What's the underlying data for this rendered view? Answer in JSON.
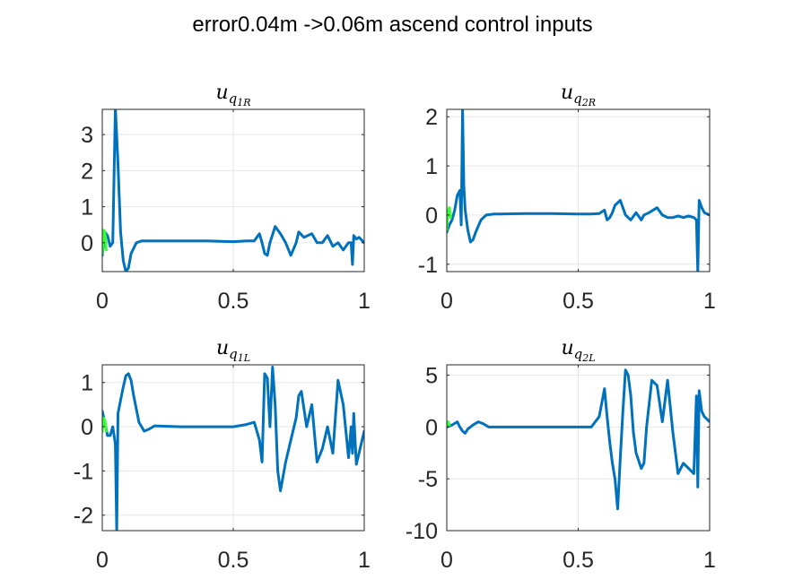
{
  "figure": {
    "title": "error0.04m ->0.06m ascend control inputs"
  },
  "colors": {
    "main": "#0072BD",
    "secondary": "#33FF33",
    "grid": "#E6E6E6",
    "axis": "#262626"
  },
  "chart_data": [
    {
      "type": "line",
      "title": {
        "base": "u",
        "sub": "q",
        "subsub": "1R"
      },
      "xlim": [
        0,
        1
      ],
      "ylim": [
        -0.8,
        3.7
      ],
      "xticks": [
        0,
        0.5,
        1
      ],
      "xtick_labels": [
        "0",
        "0.5",
        "1"
      ],
      "yticks": [
        0,
        1,
        2,
        3
      ],
      "ytick_labels": [
        "0",
        "1",
        "2",
        "3"
      ],
      "grid": true,
      "series": [
        {
          "role": "main",
          "x": [
            0,
            0.01,
            0.02,
            0.03,
            0.04,
            0.05,
            0.06,
            0.07,
            0.08,
            0.09,
            0.1,
            0.11,
            0.13,
            0.15,
            0.2,
            0.3,
            0.4,
            0.5,
            0.55,
            0.58,
            0.6,
            0.61,
            0.62,
            0.63,
            0.64,
            0.66,
            0.68,
            0.7,
            0.72,
            0.74,
            0.75,
            0.77,
            0.8,
            0.82,
            0.84,
            0.86,
            0.88,
            0.9,
            0.92,
            0.94,
            0.95,
            0.955,
            0.96,
            0.97,
            0.98,
            1.0
          ],
          "y": [
            -0.35,
            0.3,
            0.2,
            -0.1,
            0.0,
            3.75,
            2.2,
            0.3,
            -0.5,
            -0.8,
            -0.7,
            -0.3,
            0.0,
            0.05,
            0.05,
            0.05,
            0.05,
            0.03,
            0.05,
            0.05,
            0.25,
            0.0,
            -0.3,
            -0.35,
            0.0,
            0.45,
            0.25,
            0.0,
            -0.35,
            0.0,
            0.3,
            0.15,
            0.25,
            0.0,
            0.0,
            0.2,
            -0.1,
            0.0,
            -0.2,
            0.0,
            0.0,
            -0.6,
            0.2,
            0.1,
            0.15,
            0.0
          ]
        },
        {
          "role": "secondary",
          "x": [
            0,
            0.005,
            0.01,
            0.015
          ],
          "y": [
            -0.3,
            0.35,
            0.3,
            -0.2
          ]
        }
      ]
    },
    {
      "type": "line",
      "title": {
        "base": "u",
        "sub": "q",
        "subsub": "2R"
      },
      "xlim": [
        0,
        1
      ],
      "ylim": [
        -1.15,
        2.15
      ],
      "xticks": [
        0,
        0.5,
        1
      ],
      "xtick_labels": [
        "0",
        "0.5",
        "1"
      ],
      "yticks": [
        -1,
        0,
        1,
        2
      ],
      "ytick_labels": [
        "-1",
        "0",
        "1",
        "2"
      ],
      "grid": true,
      "series": [
        {
          "role": "main",
          "x": [
            0,
            0.01,
            0.02,
            0.03,
            0.04,
            0.05,
            0.055,
            0.06,
            0.065,
            0.07,
            0.08,
            0.09,
            0.1,
            0.11,
            0.13,
            0.15,
            0.18,
            0.2,
            0.3,
            0.4,
            0.5,
            0.55,
            0.58,
            0.6,
            0.61,
            0.62,
            0.63,
            0.64,
            0.66,
            0.68,
            0.7,
            0.72,
            0.74,
            0.75,
            0.77,
            0.8,
            0.82,
            0.84,
            0.86,
            0.88,
            0.9,
            0.92,
            0.94,
            0.95,
            0.955,
            0.96,
            0.97,
            0.98,
            1.0
          ],
          "y": [
            -0.35,
            -0.2,
            -0.1,
            0.1,
            0.4,
            0.5,
            -0.2,
            2.15,
            0.6,
            0.1,
            -0.3,
            -0.55,
            -0.5,
            -0.35,
            -0.1,
            0.0,
            0.02,
            0.02,
            0.03,
            0.03,
            0.02,
            0.02,
            0.03,
            0.1,
            -0.1,
            -0.05,
            0.05,
            0.2,
            0.3,
            0.0,
            -0.1,
            0.05,
            -0.1,
            0.0,
            0.05,
            0.15,
            0.0,
            -0.05,
            -0.05,
            -0.02,
            -0.05,
            -0.02,
            -0.05,
            -0.1,
            -1.15,
            0.3,
            0.15,
            0.05,
            0.0
          ]
        },
        {
          "role": "secondary",
          "x": [
            0,
            0.005,
            0.01,
            0.015
          ],
          "y": [
            -0.3,
            0.1,
            0.15,
            -0.05
          ]
        }
      ]
    },
    {
      "type": "line",
      "title": {
        "base": "u",
        "sub": "q",
        "subsub": "1L"
      },
      "xlim": [
        0,
        1
      ],
      "ylim": [
        -2.35,
        1.4
      ],
      "xticks": [
        0,
        0.5,
        1
      ],
      "xtick_labels": [
        "0",
        "0.5",
        "1"
      ],
      "yticks": [
        -2,
        -1,
        0,
        1
      ],
      "ytick_labels": [
        "-2",
        "-1",
        "0",
        "1"
      ],
      "grid": true,
      "series": [
        {
          "role": "main",
          "x": [
            0,
            0.01,
            0.02,
            0.03,
            0.04,
            0.05,
            0.055,
            0.06,
            0.07,
            0.08,
            0.09,
            0.1,
            0.11,
            0.12,
            0.14,
            0.16,
            0.18,
            0.2,
            0.3,
            0.4,
            0.5,
            0.55,
            0.58,
            0.6,
            0.61,
            0.62,
            0.63,
            0.64,
            0.65,
            0.66,
            0.67,
            0.68,
            0.7,
            0.72,
            0.74,
            0.75,
            0.76,
            0.78,
            0.8,
            0.82,
            0.84,
            0.86,
            0.88,
            0.9,
            0.92,
            0.94,
            0.95,
            0.955,
            0.96,
            0.97,
            1.0
          ],
          "y": [
            0.35,
            0.1,
            -0.2,
            -0.2,
            0.0,
            -0.4,
            -2.35,
            0.3,
            0.6,
            0.9,
            1.15,
            1.2,
            1.05,
            0.7,
            0.1,
            -0.1,
            -0.05,
            0.02,
            0.0,
            0.0,
            0.0,
            0.05,
            0.1,
            -0.3,
            -0.8,
            1.2,
            1.1,
            0.0,
            1.35,
            0.5,
            -1.0,
            -1.45,
            -0.8,
            -0.3,
            0.2,
            0.7,
            0.8,
            0.0,
            0.5,
            -0.8,
            -0.5,
            0.0,
            -0.6,
            1.05,
            0.5,
            -0.7,
            0.0,
            -0.6,
            0.3,
            -0.85,
            -0.1
          ]
        },
        {
          "role": "secondary",
          "x": [
            0,
            0.005,
            0.01,
            0.015
          ],
          "y": [
            -0.1,
            0.2,
            0.15,
            -0.1
          ]
        }
      ]
    },
    {
      "type": "line",
      "title": {
        "base": "u",
        "sub": "q",
        "subsub": "2L"
      },
      "xlim": [
        0,
        1
      ],
      "ylim": [
        -10,
        6
      ],
      "xticks": [
        0,
        0.5,
        1
      ],
      "xtick_labels": [
        "0",
        "0.5",
        "1"
      ],
      "yticks": [
        -10,
        -5,
        0,
        5
      ],
      "ytick_labels": [
        "-10",
        "-5",
        "0",
        "5"
      ],
      "grid": true,
      "series": [
        {
          "role": "main",
          "x": [
            0,
            0.02,
            0.04,
            0.05,
            0.06,
            0.07,
            0.08,
            0.1,
            0.12,
            0.14,
            0.16,
            0.2,
            0.3,
            0.4,
            0.5,
            0.55,
            0.58,
            0.6,
            0.61,
            0.62,
            0.63,
            0.64,
            0.65,
            0.66,
            0.67,
            0.68,
            0.69,
            0.7,
            0.71,
            0.72,
            0.74,
            0.75,
            0.76,
            0.78,
            0.8,
            0.82,
            0.84,
            0.86,
            0.88,
            0.9,
            0.92,
            0.94,
            0.95,
            0.955,
            0.96,
            0.97,
            0.98,
            1.0
          ],
          "y": [
            0.0,
            0.2,
            0.5,
            0.0,
            -0.4,
            -0.6,
            -0.2,
            0.2,
            0.5,
            0.3,
            0.0,
            0.0,
            0.0,
            0.0,
            0.0,
            0.0,
            1.0,
            3.7,
            1.0,
            -1.5,
            -3.5,
            -5.0,
            -7.9,
            -3.0,
            1.5,
            5.5,
            5.0,
            3.0,
            -0.5,
            -2.5,
            -4.0,
            -3.5,
            0.0,
            4.5,
            4.0,
            0.5,
            4.5,
            -0.5,
            -4.5,
            -3.5,
            -4.0,
            -4.5,
            3.0,
            -5.8,
            3.5,
            1.5,
            1.0,
            0.5
          ]
        },
        {
          "role": "secondary",
          "x": [
            0,
            0.005,
            0.01
          ],
          "y": [
            0.2,
            0.5,
            0.2
          ]
        }
      ]
    }
  ]
}
